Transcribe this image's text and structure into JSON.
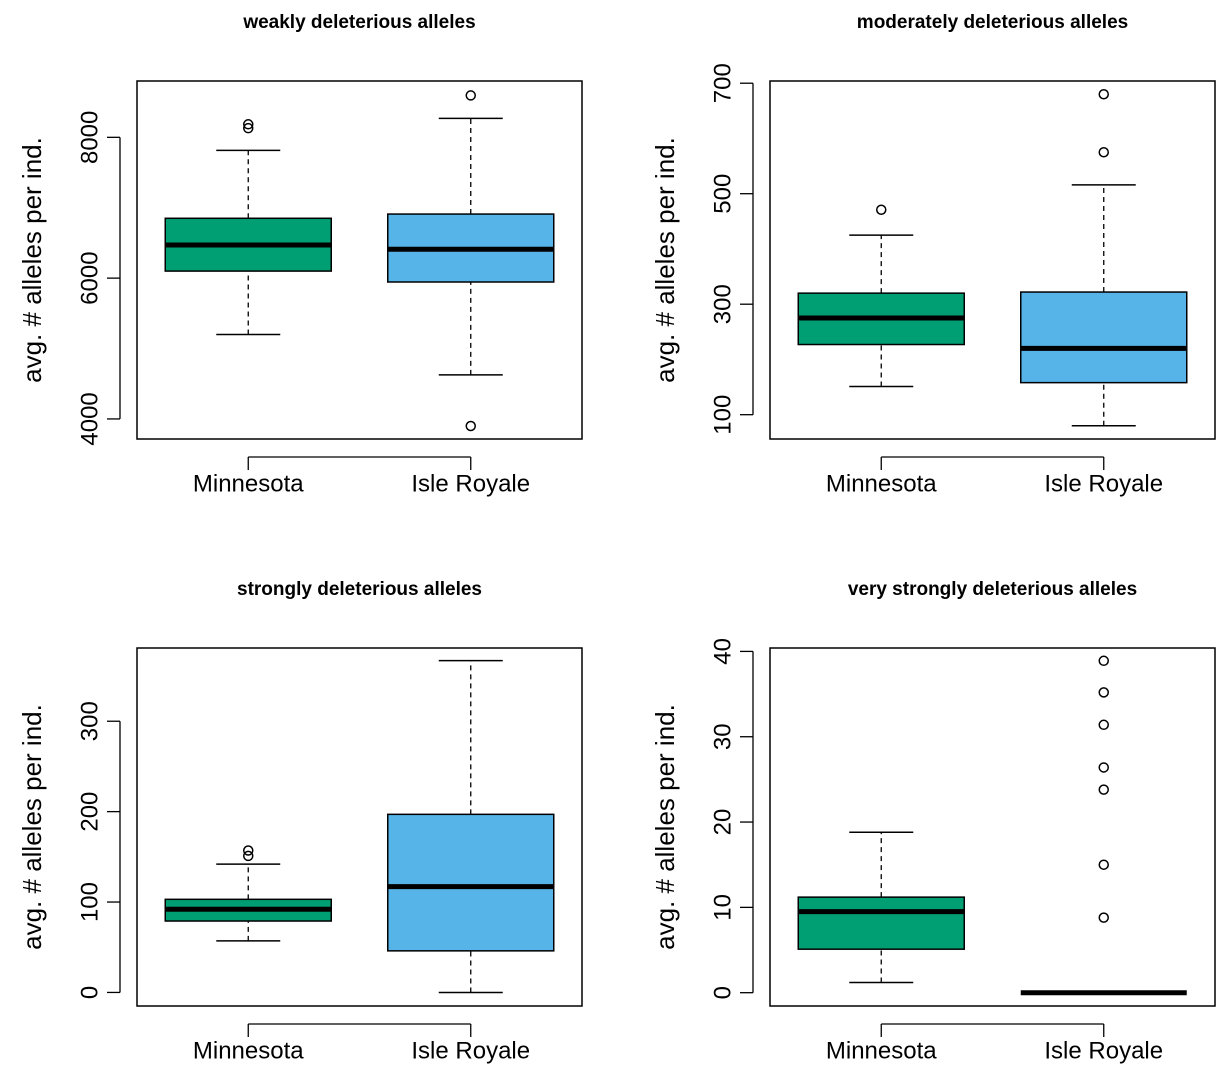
{
  "chart_data": [
    {
      "type": "boxplot",
      "title": "weakly deleterious alleles",
      "ylabel": "avg. # alleles per ind.",
      "categories": [
        "Minnesota",
        "Isle Royale"
      ],
      "boxes": [
        {
          "color": "#009E73",
          "whislo": 5200,
          "q1": 6100,
          "med": 6470,
          "q3": 6850,
          "whishi": 7815,
          "fliers": [
            8130,
            8185
          ]
        },
        {
          "color": "#56B4E9",
          "whislo": 4625,
          "q1": 5945,
          "med": 6410,
          "q3": 6910,
          "whishi": 8270,
          "fliers": [
            3900,
            8595
          ]
        }
      ],
      "ylim": [
        3715,
        8800
      ],
      "yticks": [
        4000,
        6000,
        8000
      ]
    },
    {
      "type": "boxplot",
      "title": "moderately deleterious alleles",
      "ylabel": "avg. # alleles per ind.",
      "categories": [
        "Minnesota",
        "Isle Royale"
      ],
      "boxes": [
        {
          "color": "#009E73",
          "whislo": 151,
          "q1": 227,
          "med": 275,
          "q3": 320,
          "whishi": 425,
          "fliers": [
            471
          ]
        },
        {
          "color": "#56B4E9",
          "whislo": 80,
          "q1": 158,
          "med": 220,
          "q3": 322,
          "whishi": 516,
          "fliers": [
            575,
            680
          ]
        }
      ],
      "ylim": [
        56,
        704
      ],
      "yticks": [
        100,
        300,
        500,
        700
      ]
    },
    {
      "type": "boxplot",
      "title": "strongly deleterious alleles",
      "ylabel": "avg. # alleles per ind.",
      "categories": [
        "Minnesota",
        "Isle Royale"
      ],
      "boxes": [
        {
          "color": "#009E73",
          "whislo": 57,
          "q1": 79,
          "med": 92,
          "q3": 103,
          "whishi": 142,
          "fliers": [
            151,
            157
          ]
        },
        {
          "color": "#56B4E9",
          "whislo": 0,
          "q1": 46,
          "med": 117,
          "q3": 197,
          "whishi": 367,
          "fliers": []
        }
      ],
      "ylim": [
        -15,
        381
      ],
      "yticks": [
        0,
        100,
        200,
        300
      ]
    },
    {
      "type": "boxplot",
      "title": "very strongly deleterious alleles",
      "ylabel": "avg. # alleles per ind.",
      "categories": [
        "Minnesota",
        "Isle Royale"
      ],
      "boxes": [
        {
          "color": "#009E73",
          "whislo": 1.2,
          "q1": 5.1,
          "med": 9.5,
          "q3": 11.2,
          "whishi": 18.8,
          "fliers": []
        },
        {
          "color": "#56B4E9",
          "whislo": 0,
          "q1": 0,
          "med": 0,
          "q3": 0,
          "whishi": 0,
          "fliers": [
            8.8,
            15.0,
            23.8,
            26.4,
            31.4,
            35.2,
            38.9
          ]
        }
      ],
      "ylim": [
        -1.56,
        40.4
      ],
      "yticks": [
        0,
        10,
        20,
        30,
        40
      ]
    }
  ]
}
